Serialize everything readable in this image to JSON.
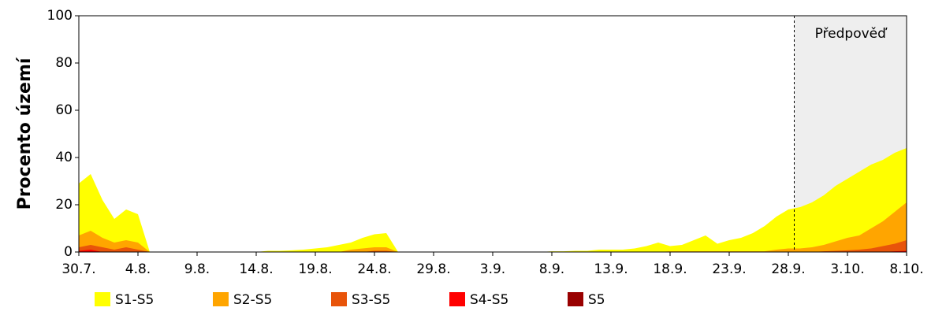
{
  "chart_data": {
    "type": "area",
    "y_label": "Procento území",
    "annotation": "Předpověď",
    "forecast_from": 60.5,
    "forecast_color": "#eeeeee",
    "categories": [
      "30.7.",
      null,
      null,
      null,
      null,
      "4.8.",
      null,
      null,
      null,
      null,
      "9.8.",
      null,
      null,
      null,
      null,
      "14.8.",
      null,
      null,
      null,
      null,
      "19.8.",
      null,
      null,
      null,
      null,
      "24.8.",
      null,
      null,
      null,
      null,
      "29.8.",
      null,
      null,
      null,
      null,
      "3.9.",
      null,
      null,
      null,
      null,
      "8.9.",
      null,
      null,
      null,
      null,
      "13.9.",
      null,
      null,
      null,
      null,
      "18.9.",
      null,
      null,
      null,
      null,
      "23.9.",
      null,
      null,
      null,
      null,
      "28.9.",
      null,
      null,
      null,
      null,
      "3.10.",
      null,
      null,
      null,
      null,
      "8.10."
    ],
    "series": [
      {
        "name": "S1-S5",
        "color": "#ffff00",
        "values": [
          29,
          33,
          22,
          14,
          18,
          16,
          0,
          0,
          0,
          0,
          0,
          0,
          0,
          0,
          0,
          0,
          0.5,
          0.5,
          0.7,
          1,
          1.5,
          2,
          3,
          4,
          6,
          7.5,
          8,
          0,
          0,
          0,
          0,
          0,
          0,
          0,
          0,
          0,
          0,
          0,
          0,
          0,
          0.3,
          0.3,
          0.5,
          0.5,
          1,
          1,
          1,
          1.5,
          2.5,
          4,
          2.5,
          3,
          5,
          7,
          3.5,
          5,
          6,
          8,
          11,
          15,
          18,
          19,
          21,
          24,
          28,
          31,
          34,
          37,
          39,
          42,
          44
        ]
      },
      {
        "name": "S2-S5",
        "color": "#ffa500",
        "values": [
          7,
          9,
          6,
          4,
          5,
          4,
          0,
          0,
          0,
          0,
          0,
          0,
          0,
          0,
          0,
          0,
          0,
          0,
          0,
          0,
          0,
          0,
          0,
          1,
          1.5,
          2,
          2,
          0,
          0,
          0,
          0,
          0,
          0,
          0,
          0,
          0,
          0,
          0,
          0,
          0,
          0,
          0,
          0,
          0,
          0,
          0,
          0,
          0,
          0,
          0,
          0.3,
          0.3,
          0.3,
          0.3,
          0.3,
          0.3,
          0.3,
          0.3,
          0.3,
          1,
          1.5,
          1.5,
          2,
          3,
          4.5,
          6,
          7,
          10,
          13,
          17,
          21
        ]
      },
      {
        "name": "S3-S5",
        "color": "#e8540a",
        "values": [
          2,
          3,
          2,
          1,
          2,
          1,
          0,
          0,
          0,
          0,
          0,
          0,
          0,
          0,
          0,
          0,
          0,
          0,
          0,
          0,
          0,
          0,
          0,
          0,
          0,
          0.5,
          0.5,
          0,
          0,
          0,
          0,
          0,
          0,
          0,
          0,
          0,
          0,
          0,
          0,
          0,
          0,
          0,
          0,
          0,
          0,
          0,
          0,
          0,
          0,
          0,
          0,
          0,
          0,
          0,
          0,
          0,
          0,
          0,
          0,
          0,
          0,
          0,
          0,
          0.3,
          0.5,
          0.7,
          1,
          1.5,
          2.5,
          3.5,
          5
        ]
      },
      {
        "name": "S4-S5",
        "color": "#ff0000",
        "values": [
          0.5,
          1,
          0,
          0,
          0,
          0,
          0,
          0,
          0,
          0,
          0,
          0,
          0,
          0,
          0,
          0,
          0,
          0,
          0,
          0,
          0,
          0,
          0,
          0,
          0,
          0,
          0,
          0,
          0,
          0,
          0,
          0,
          0,
          0,
          0,
          0,
          0,
          0,
          0,
          0,
          0,
          0,
          0,
          0,
          0,
          0,
          0,
          0,
          0,
          0,
          0,
          0,
          0,
          0,
          0,
          0,
          0,
          0,
          0,
          0,
          0,
          0,
          0,
          0,
          0,
          0,
          0,
          0,
          0,
          0.3,
          0.5
        ]
      },
      {
        "name": "S5",
        "color": "#990000",
        "values": [
          0,
          0,
          0,
          0,
          0,
          0,
          0,
          0,
          0,
          0,
          0,
          0,
          0,
          0,
          0,
          0,
          0,
          0,
          0,
          0,
          0,
          0,
          0,
          0,
          0,
          0,
          0,
          0,
          0,
          0,
          0,
          0,
          0,
          0,
          0,
          0,
          0,
          0,
          0,
          0,
          0,
          0,
          0,
          0,
          0,
          0,
          0,
          0,
          0,
          0,
          0,
          0,
          0,
          0,
          0,
          0,
          0,
          0,
          0,
          0,
          0,
          0,
          0,
          0,
          0,
          0,
          0,
          0,
          0,
          0,
          0
        ]
      }
    ],
    "ylim": [
      0,
      100
    ],
    "yticks": [
      0,
      20,
      40,
      60,
      80,
      100
    ],
    "grid": false
  }
}
